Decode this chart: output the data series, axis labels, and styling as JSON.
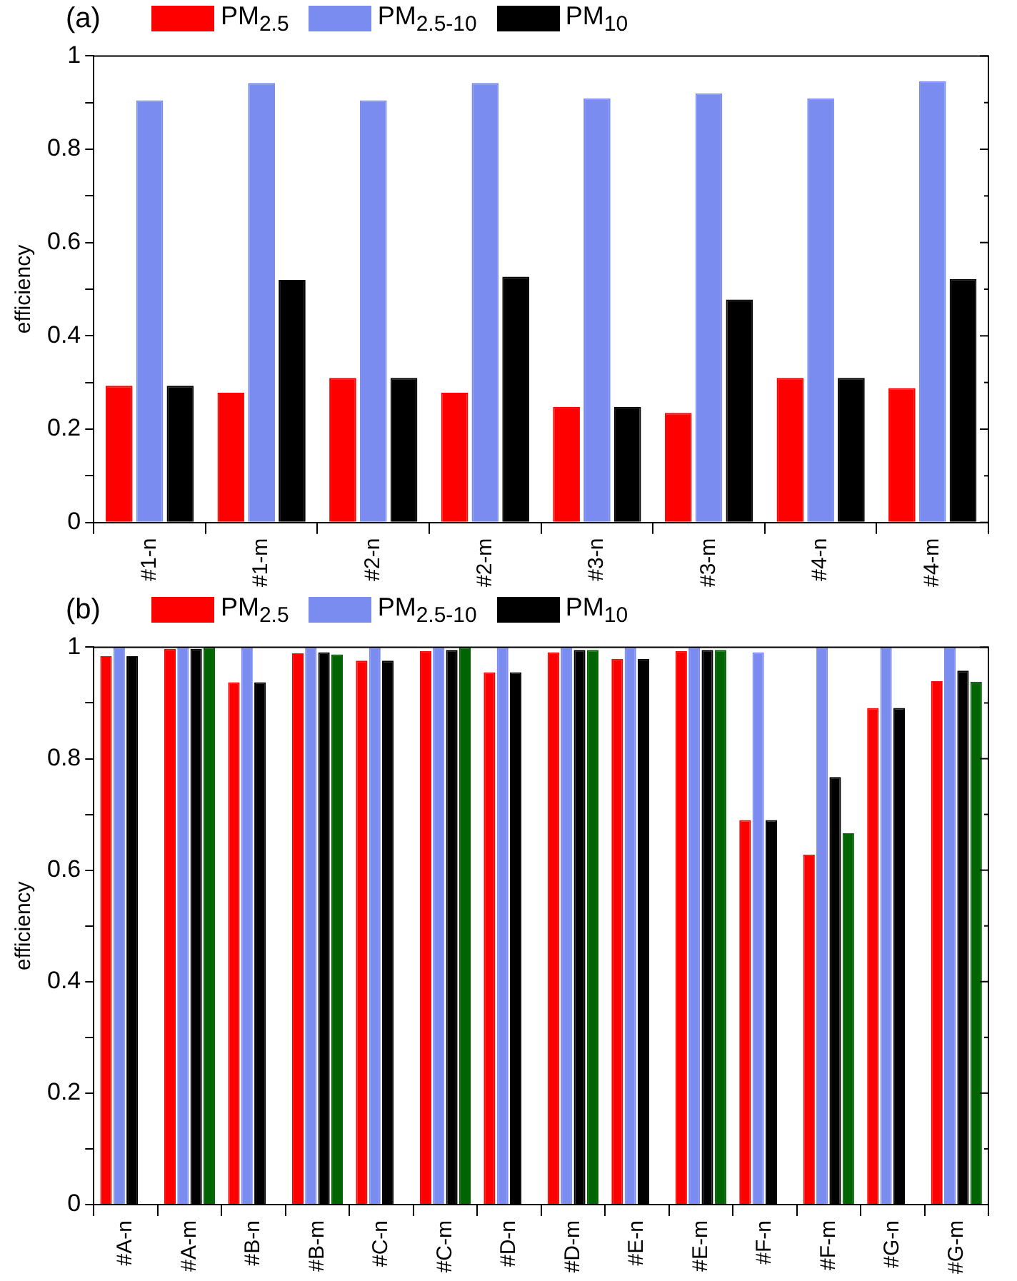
{
  "chart_data": [
    {
      "type": "bar",
      "title": "(a)",
      "ylabel": "efficiency",
      "categories": [
        "#1-n",
        "#1-m",
        "#2-n",
        "#2-m",
        "#3-n",
        "#3-m",
        "#4-n",
        "#4-m"
      ],
      "series": [
        {
          "name": "PM$_{2.5}$",
          "color": "#ff0000",
          "values": [
            0.293,
            0.278,
            0.31,
            0.278,
            0.248,
            0.235,
            0.31,
            0.288
          ]
        },
        {
          "name": "PM$_{2.5-10}$",
          "color": "#7b8cf0",
          "values": [
            0.905,
            0.942,
            0.905,
            0.942,
            0.909,
            0.92,
            0.909,
            0.946
          ]
        },
        {
          "name": "PM$_{10}$",
          "color": "#000000",
          "values": [
            0.293,
            0.52,
            0.31,
            0.527,
            0.248,
            0.478,
            0.31,
            0.522
          ]
        }
      ],
      "ylim": [
        0,
        1
      ],
      "yticks": [
        0,
        {
          "value": 0.1,
          "label": null
        },
        0.2,
        {
          "value": 0.3,
          "label": null
        },
        0.4,
        {
          "value": 0.5,
          "label": null
        },
        0.6,
        {
          "value": 0.7,
          "label": null
        },
        0.8,
        {
          "value": 0.9,
          "label": null
        },
        1
      ],
      "grid": false,
      "legend": "top"
    },
    {
      "type": "bar",
      "title": "(b)",
      "ylabel": "efficiency",
      "categories": [
        "#A-n",
        "#A-m",
        "#B-n",
        "#B-m",
        "#C-n",
        "#C-m",
        "#D-n",
        "#D-m",
        "#E-n",
        "#E-m",
        "#F-n",
        "#F-m",
        "#G-n",
        "#G-m"
      ],
      "series": [
        {
          "name": "PM$_{2.5}$",
          "color": "#ff0000",
          "values": [
            0.984,
            0.997,
            0.937,
            0.989,
            0.976,
            0.993,
            0.955,
            0.991,
            0.979,
            0.993,
            0.69,
            0.628,
            0.891,
            0.939
          ]
        },
        {
          "name": "PM$_{2.5-10}$",
          "color": "#7b8cf0",
          "values": [
            1,
            1,
            1,
            1,
            1,
            1,
            1,
            1,
            1,
            1,
            0.991,
            1,
            1,
            1
          ]
        },
        {
          "name": "PM$_{10}$",
          "color": "#000000",
          "values": [
            0.984,
            0.997,
            0.937,
            0.991,
            0.976,
            0.995,
            0.955,
            0.995,
            0.979,
            0.995,
            0.69,
            0.767,
            0.891,
            0.958
          ]
        },
        {
          "color": "#006400",
          "values": [
            null,
            1,
            null,
            0.987,
            null,
            1,
            null,
            0.995,
            null,
            0.995,
            null,
            0.666,
            null,
            0.938
          ]
        }
      ],
      "ylim": [
        0,
        1
      ],
      "yticks": [
        0,
        {
          "value": 0.1,
          "label": null
        },
        0.2,
        {
          "value": 0.3,
          "label": null
        },
        0.4,
        {
          "value": 0.5,
          "label": null
        },
        0.6,
        {
          "value": 0.7,
          "label": null
        },
        0.8,
        {
          "value": 0.9,
          "label": null
        },
        1
      ],
      "grid": false,
      "legend": "top"
    }
  ]
}
